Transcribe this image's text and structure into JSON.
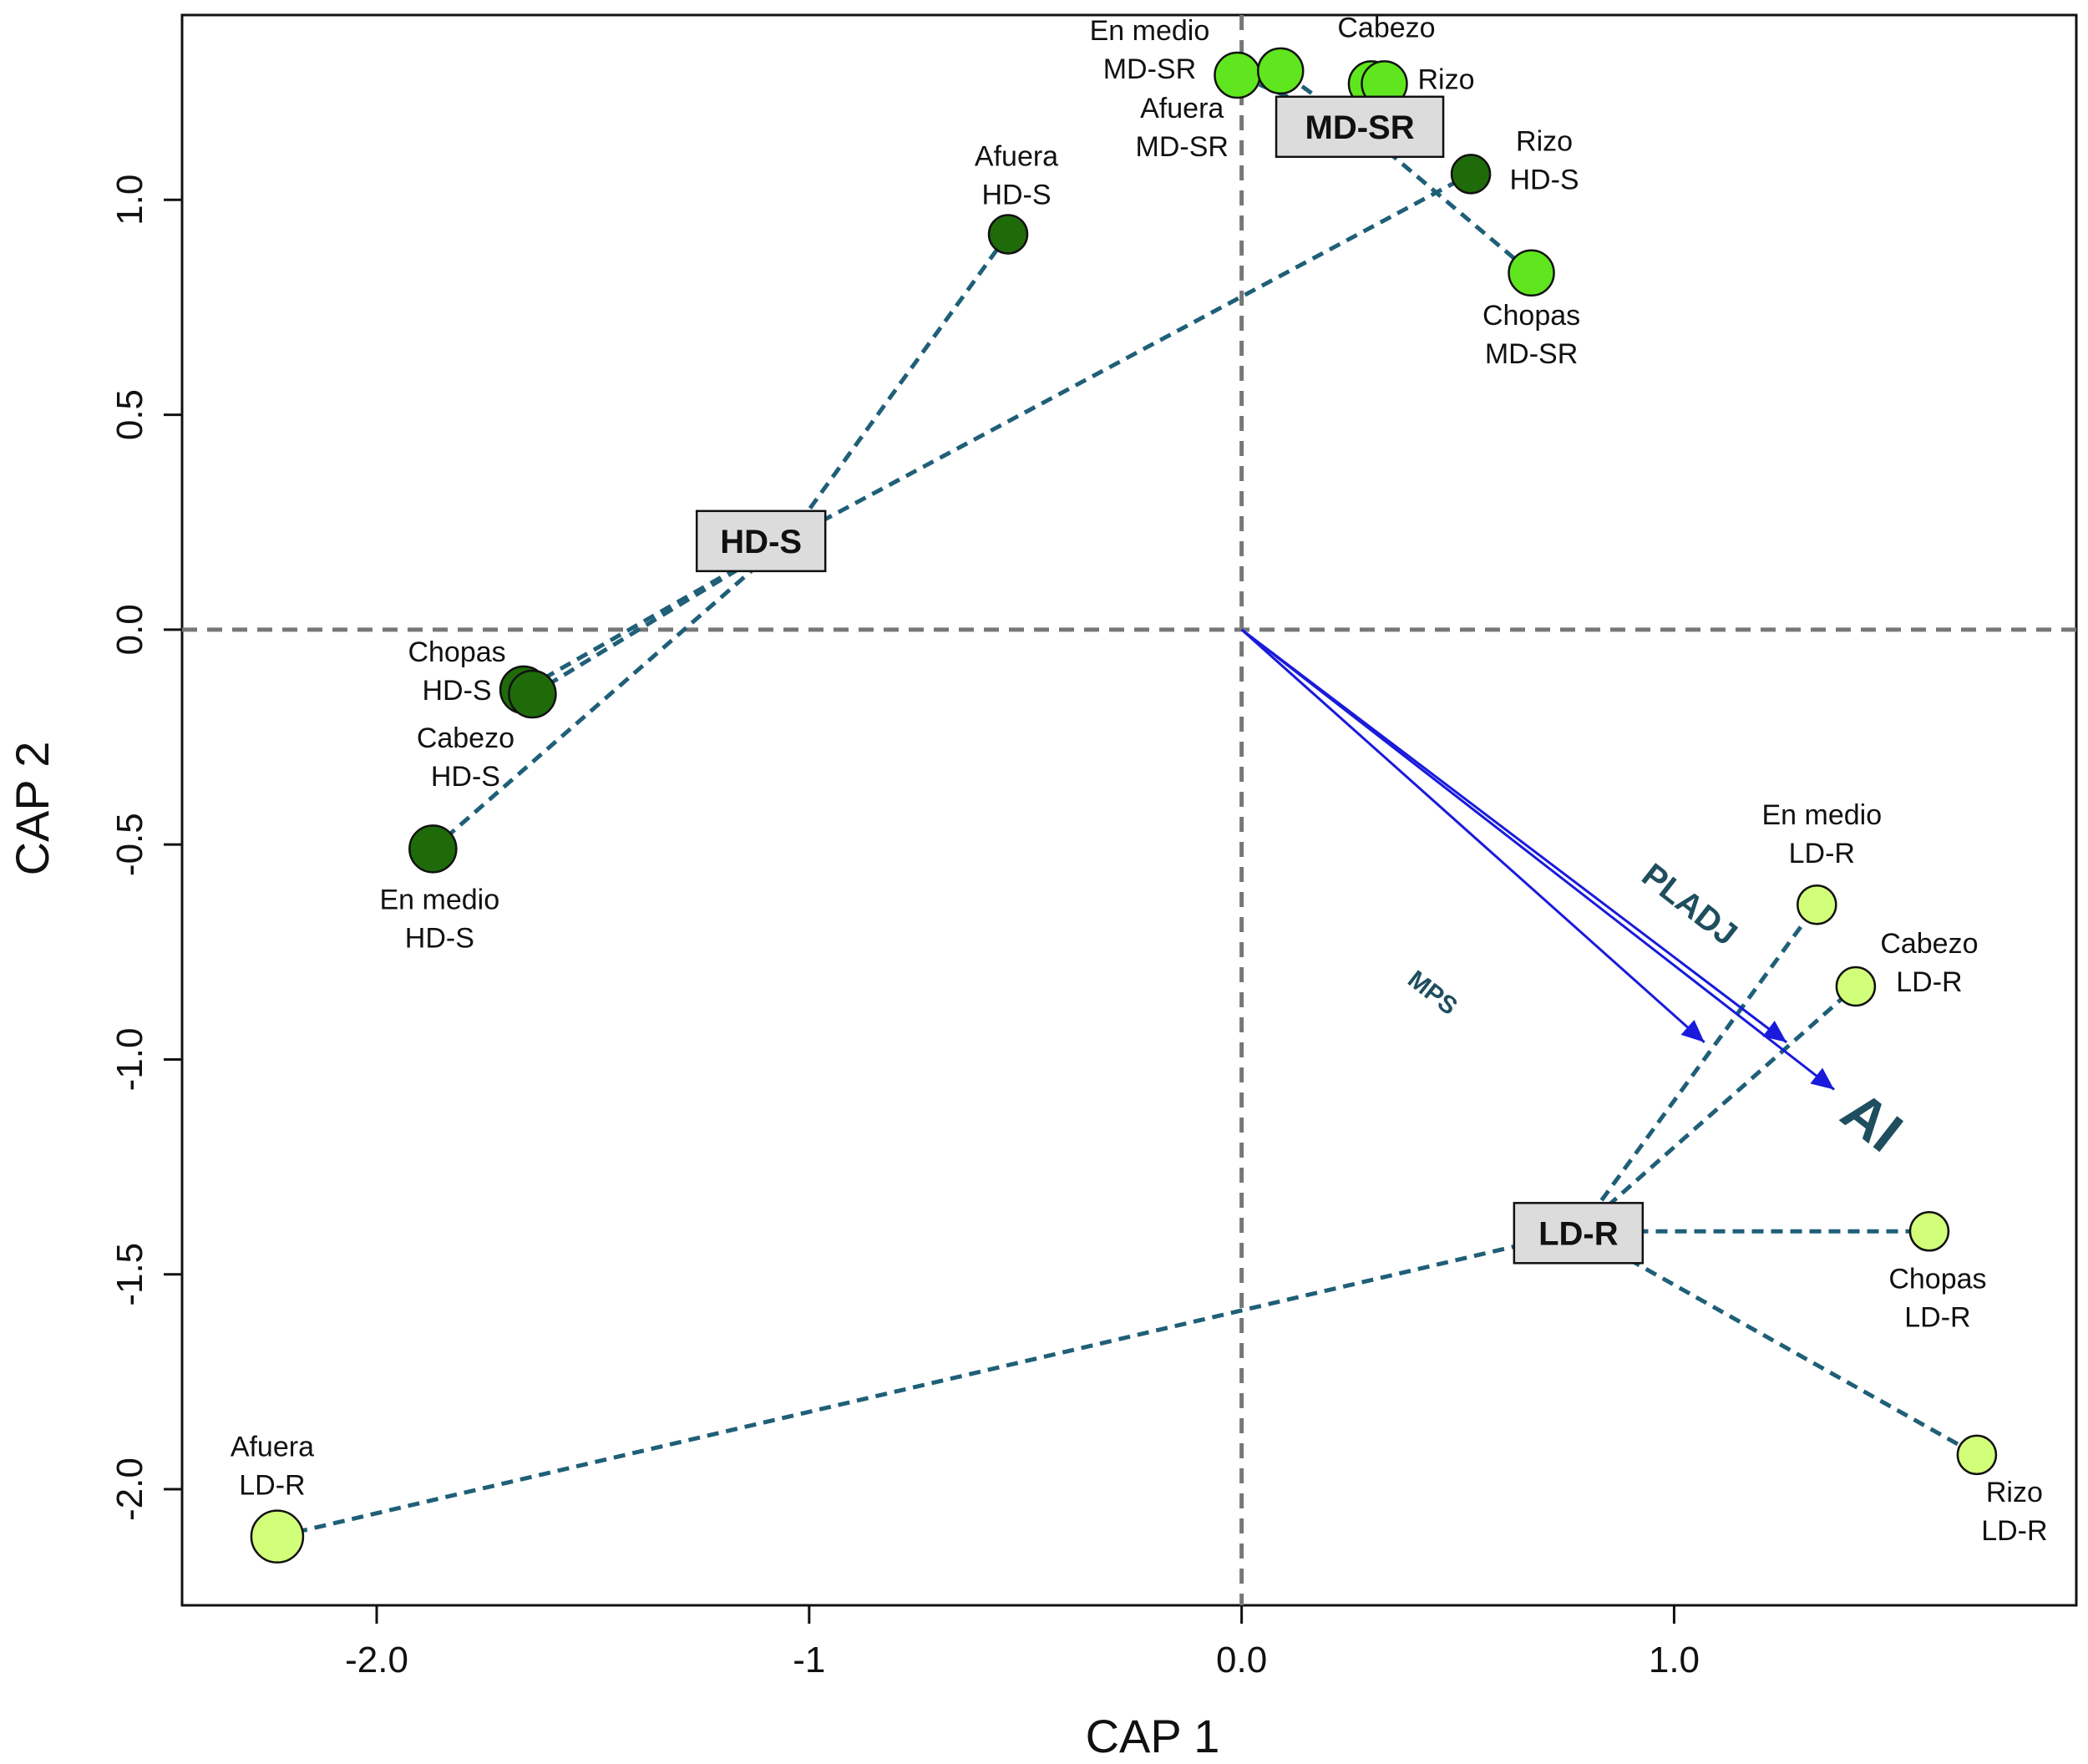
{
  "chart_data": {
    "type": "scatter",
    "title": "",
    "xlabel": "CAP 1",
    "ylabel": "CAP 2",
    "xlim": [
      -2.45,
      1.93
    ],
    "ylim": [
      -2.27,
      1.43
    ],
    "x_ticks": [
      {
        "value": -2.0,
        "label": "-2.0"
      },
      {
        "value": -1.0,
        "label": "-1"
      },
      {
        "value": 0.0,
        "label": "0.0"
      },
      {
        "value": 1.0,
        "label": "1.0"
      }
    ],
    "y_ticks": [
      {
        "value": 1.0,
        "label": "1.0"
      },
      {
        "value": 0.5,
        "label": "0.5"
      },
      {
        "value": 0.0,
        "label": "0.0"
      },
      {
        "value": -0.5,
        "label": "-0.5"
      },
      {
        "value": -1.0,
        "label": "-1.0"
      },
      {
        "value": -1.5,
        "label": "-1.5"
      },
      {
        "value": -2.0,
        "label": "-2.0"
      }
    ],
    "colors": {
      "HD-S": "#1f6b0a",
      "MD-SR": "#5fe61e",
      "LD-R": "#d2ff7a",
      "spider": "#1f5f78",
      "vector": "#1a1adc",
      "zero_line": "#777777"
    },
    "groups": [
      {
        "name": "HD-S",
        "centroid": [
          -1.05,
          0.21
        ]
      },
      {
        "name": "MD-SR",
        "centroid": [
          0.27,
          1.17
        ]
      },
      {
        "name": "LD-R",
        "centroid": [
          0.78,
          -1.4
        ]
      }
    ],
    "points": [
      {
        "group": "HD-S",
        "site": "Afuera",
        "x": -0.54,
        "y": 0.92,
        "label_line1": "Afuera",
        "label_line2": "HD-S"
      },
      {
        "group": "HD-S",
        "site": "Chopas",
        "x": -1.66,
        "y": -0.14,
        "label_line1": "Chopas",
        "label_line2": "HD-S"
      },
      {
        "group": "HD-S",
        "site": "Cabezo",
        "x": -1.64,
        "y": -0.15,
        "label_line1": "Cabezo",
        "label_line2": "HD-S"
      },
      {
        "group": "HD-S",
        "site": "En medio",
        "x": -1.87,
        "y": -0.51,
        "label_line1": "En medio",
        "label_line2": "HD-S"
      },
      {
        "group": "HD-S",
        "site": "Rizo",
        "x": 0.53,
        "y": 1.06,
        "label_line1": "Rizo",
        "label_line2": "HD-S"
      },
      {
        "group": "MD-SR",
        "site": "En medio",
        "x": -0.01,
        "y": 1.29,
        "label_line1": "En medio",
        "label_line2": "MD-SR"
      },
      {
        "group": "MD-SR",
        "site": "Afuera",
        "x": 0.09,
        "y": 1.3,
        "label_line1": "Afuera",
        "label_line2": "MD-SR"
      },
      {
        "group": "MD-SR",
        "site": "Cabezo",
        "x": 0.3,
        "y": 1.27,
        "label_line1": "Cabezo",
        "label_line2": ""
      },
      {
        "group": "MD-SR",
        "site": "Rizo",
        "x": 0.33,
        "y": 1.27,
        "label_line1": "Rizo",
        "label_line2": ""
      },
      {
        "group": "MD-SR",
        "site": "Chopas",
        "x": 0.67,
        "y": 0.83,
        "label_line1": "Chopas",
        "label_line2": "MD-SR"
      },
      {
        "group": "LD-R",
        "site": "En medio",
        "x": 1.33,
        "y": -0.64,
        "label_line1": "En medio",
        "label_line2": "LD-R"
      },
      {
        "group": "LD-R",
        "site": "Cabezo",
        "x": 1.42,
        "y": -0.83,
        "label_line1": "Cabezo",
        "label_line2": "LD-R"
      },
      {
        "group": "LD-R",
        "site": "Chopas",
        "x": 1.59,
        "y": -1.4,
        "label_line1": "Chopas",
        "label_line2": "LD-R"
      },
      {
        "group": "LD-R",
        "site": "Rizo",
        "x": 1.7,
        "y": -1.92,
        "label_line1": "Rizo",
        "label_line2": "LD-R"
      },
      {
        "group": "LD-R",
        "site": "Afuera",
        "x": -2.23,
        "y": -2.11,
        "label_line1": "Afuera",
        "label_line2": "LD-R"
      }
    ],
    "vectors": [
      {
        "name": "PLADJ",
        "x": 1.26,
        "y": -0.96
      },
      {
        "name": "MPS",
        "x": 1.07,
        "y": -0.96
      },
      {
        "name": "AI",
        "x": 1.37,
        "y": -1.07
      }
    ]
  }
}
